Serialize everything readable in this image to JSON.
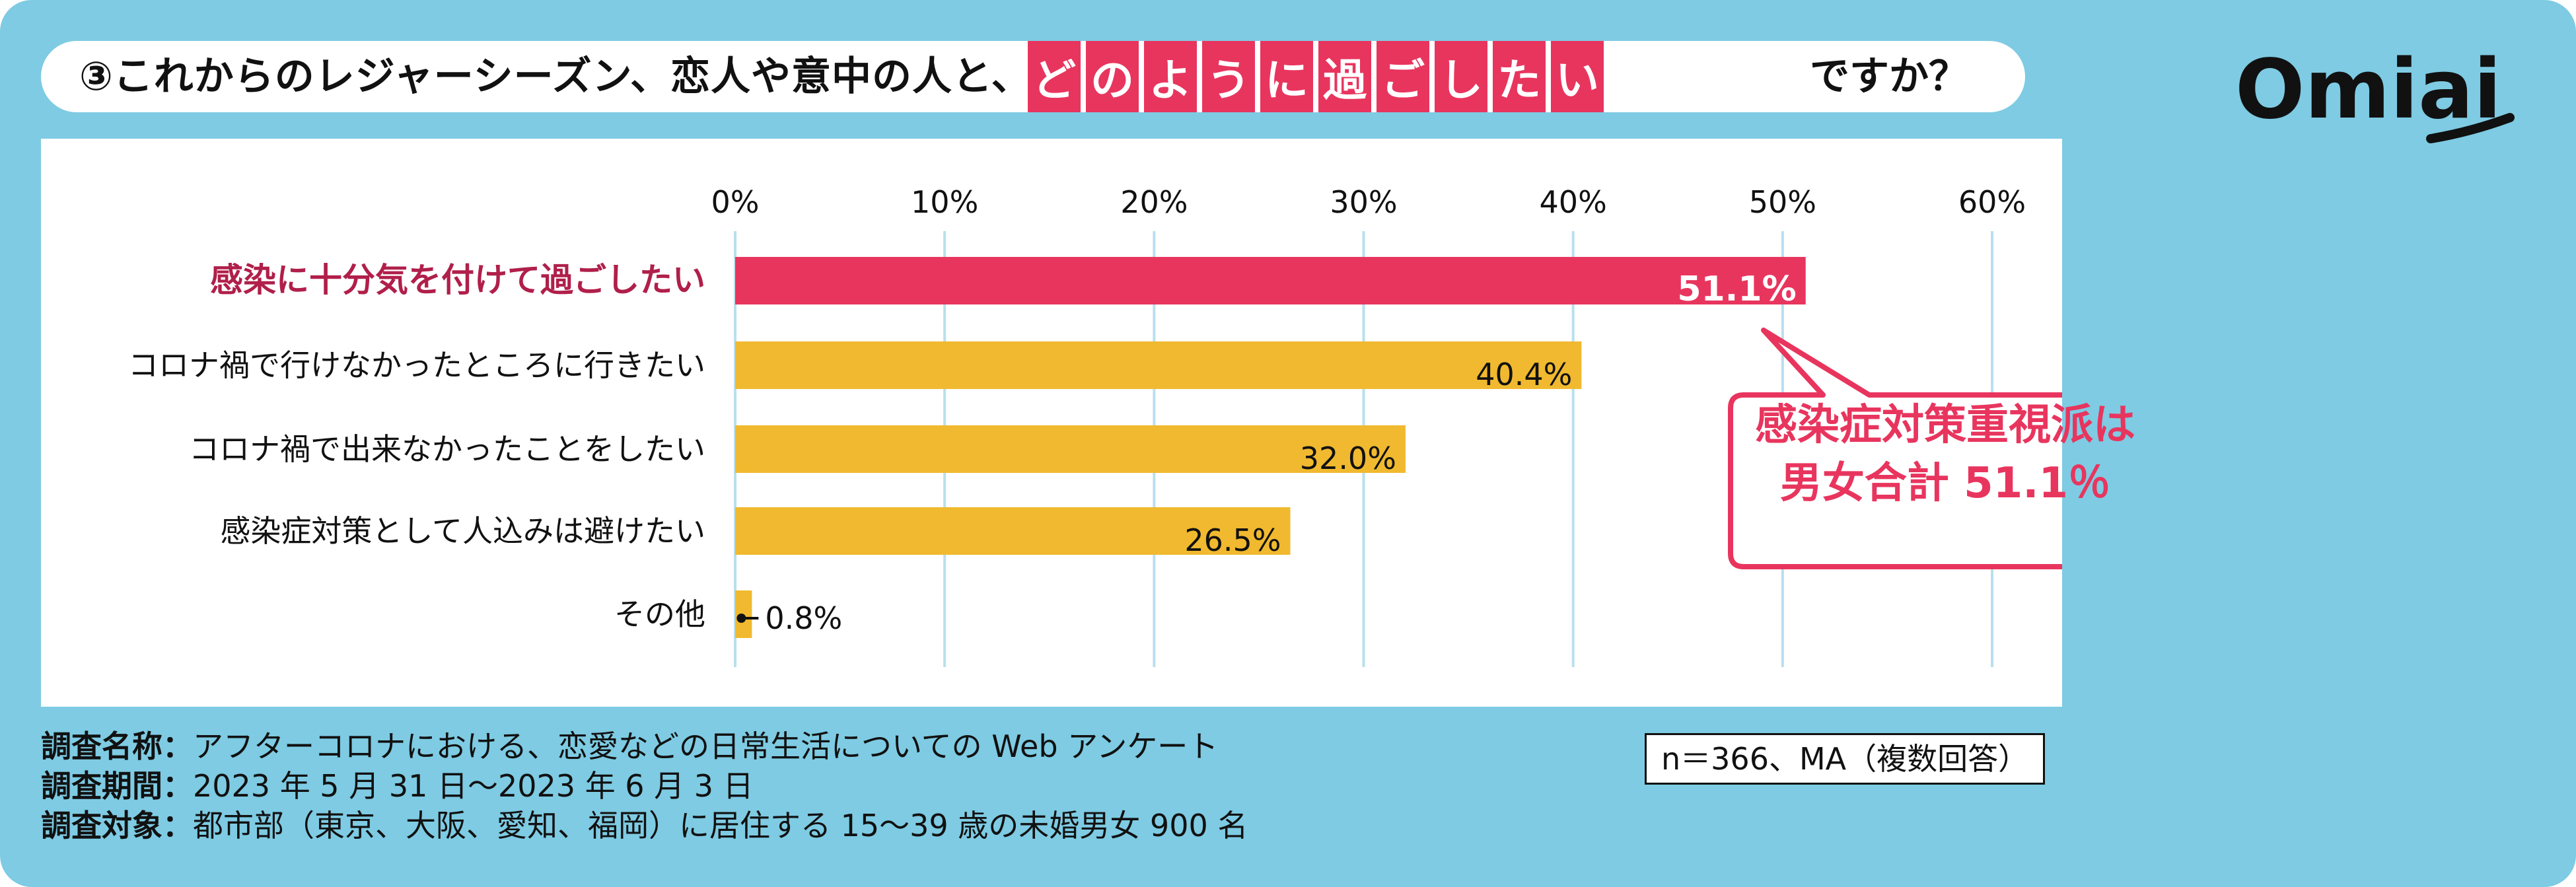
{
  "title": {
    "prefix": "③これからのレジャーシーズン、恋人や意中の人と、",
    "highlight_chars": [
      "ど",
      "の",
      "よ",
      "う",
      "に",
      "過",
      "ご",
      "し",
      "た",
      "い"
    ],
    "suffix": "ですか？"
  },
  "logo": {
    "text": "Omiai"
  },
  "colors": {
    "background": "#7ecbe3",
    "highlight": "#e8355e",
    "bar": "#f0b92f",
    "grid": "#b9dfee"
  },
  "chart_data": {
    "type": "bar",
    "orientation": "horizontal",
    "categories": [
      "感染に十分気を付けて過ごしたい",
      "コロナ禍で行けなかったところに行きたい",
      "コロナ禍で出来なかったことをしたい",
      "感染症対策として人込みは避けたい",
      "その他"
    ],
    "values": [
      51.1,
      40.4,
      32.0,
      26.5,
      0.8
    ],
    "value_labels": [
      "51.1%",
      "40.4%",
      "32.0%",
      "26.5%",
      "0.8%"
    ],
    "highlight_index": 0,
    "xlim": [
      0,
      60
    ],
    "xticks": [
      "0%",
      "10%",
      "20%",
      "30%",
      "40%",
      "50%",
      "60%"
    ],
    "grid": true
  },
  "callout": {
    "line1": "感染症対策重視派は",
    "line2": "男女合計 51.1％"
  },
  "footnotes": [
    {
      "label": "調査名称：",
      "text": "アフターコロナにおける、恋愛などの日常生活についての Web アンケート"
    },
    {
      "label": "調査期間：",
      "text": "2023 年 5 月 31 日〜2023 年 6 月 3 日"
    },
    {
      "label": "調査対象：",
      "text": "都市部（東京、大阪、愛知、福岡）に居住する 15〜39 歳の未婚男女 900 名"
    }
  ],
  "sample_note": "n＝366、MA（複数回答）"
}
